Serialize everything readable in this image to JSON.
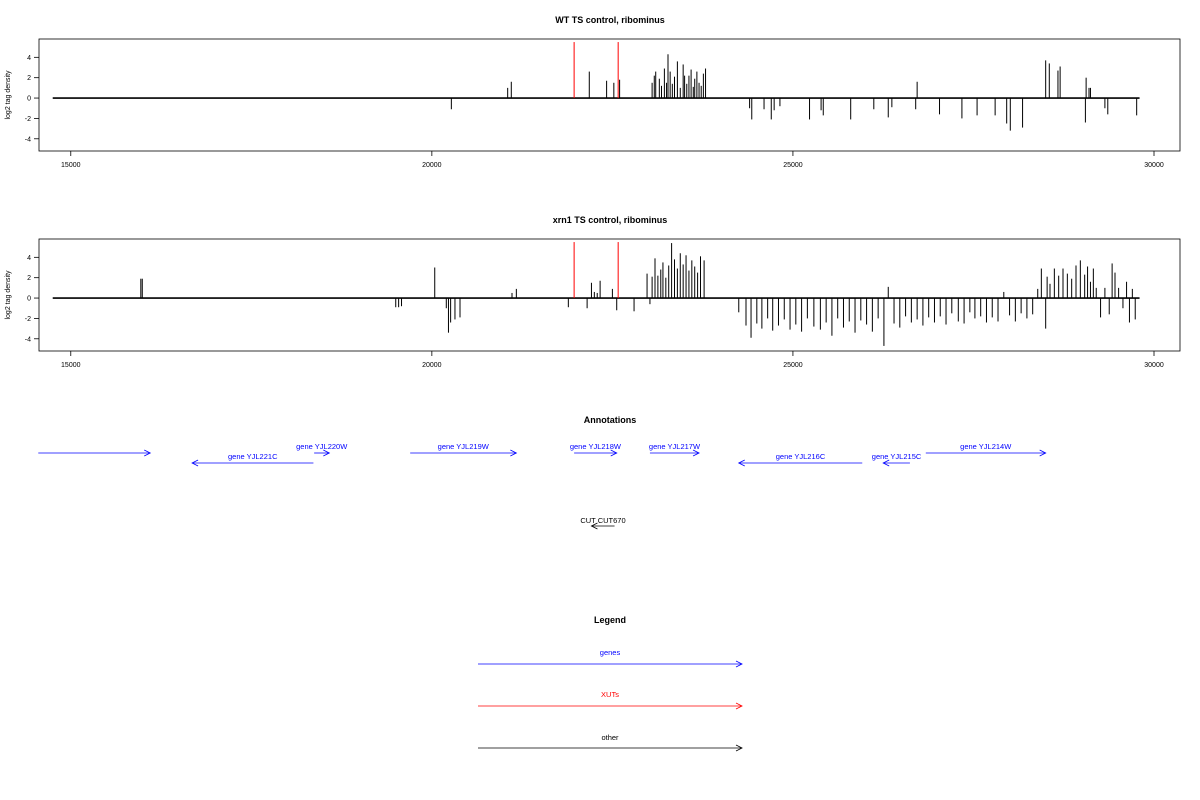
{
  "chart_data": [
    {
      "type": "bar",
      "title": "WT TS control, ribominus",
      "ylabel": "log2 tag density",
      "xlim": [
        14560,
        30360
      ],
      "ylim": [
        -5.2,
        5.8
      ],
      "x_ticks": [
        15000,
        20000,
        25000,
        30000
      ],
      "y_ticks": [
        4,
        2,
        0,
        -2,
        -4
      ],
      "baseline": [
        14750,
        29800
      ],
      "bars": [
        [
          20270,
          -1.1
        ],
        [
          21050,
          1.0
        ],
        [
          21100,
          1.6
        ],
        [
          22180,
          2.6
        ],
        [
          22420,
          1.7
        ],
        [
          22520,
          1.5
        ],
        [
          22600,
          1.8
        ],
        [
          23050,
          1.5
        ],
        [
          23080,
          2.2
        ],
        [
          23100,
          2.6
        ],
        [
          23150,
          1.9
        ],
        [
          23180,
          1.2
        ],
        [
          23220,
          2.9
        ],
        [
          23250,
          1.5
        ],
        [
          23270,
          4.3
        ],
        [
          23300,
          2.6
        ],
        [
          23330,
          1.4
        ],
        [
          23360,
          2.1
        ],
        [
          23400,
          3.6
        ],
        [
          23440,
          1.0
        ],
        [
          23480,
          3.3
        ],
        [
          23500,
          2.2
        ],
        [
          23530,
          1.4
        ],
        [
          23560,
          2.2
        ],
        [
          23590,
          2.8
        ],
        [
          23620,
          1.1
        ],
        [
          23640,
          1.9
        ],
        [
          23670,
          2.6
        ],
        [
          23700,
          1.5
        ],
        [
          23730,
          1.2
        ],
        [
          23760,
          2.4
        ],
        [
          23790,
          2.9
        ],
        [
          24400,
          -1.0
        ],
        [
          24430,
          -2.1
        ],
        [
          24600,
          -1.1
        ],
        [
          24700,
          -2.1
        ],
        [
          24740,
          -1.2
        ],
        [
          24820,
          -0.8
        ],
        [
          25230,
          -2.1
        ],
        [
          25390,
          -1.2
        ],
        [
          25420,
          -1.7
        ],
        [
          25800,
          -2.1
        ],
        [
          26120,
          -1.1
        ],
        [
          26320,
          -1.9
        ],
        [
          26370,
          -0.9
        ],
        [
          26700,
          -1.1
        ],
        [
          26720,
          1.6
        ],
        [
          27030,
          -1.6
        ],
        [
          27340,
          -2.0
        ],
        [
          27550,
          -1.7
        ],
        [
          27800,
          -1.7
        ],
        [
          27960,
          -2.5
        ],
        [
          28010,
          -3.2
        ],
        [
          28180,
          -2.9
        ],
        [
          28500,
          3.7
        ],
        [
          28550,
          3.4
        ],
        [
          28670,
          2.7
        ],
        [
          28700,
          3.1
        ],
        [
          29050,
          -2.4
        ],
        [
          29060,
          2.0
        ],
        [
          29100,
          1.0
        ],
        [
          29120,
          1.0
        ],
        [
          29320,
          -1.0
        ],
        [
          29360,
          -1.6
        ],
        [
          29760,
          -1.7
        ]
      ],
      "highlight_bars": [
        [
          21970,
          5.5
        ],
        [
          22580,
          5.5
        ]
      ]
    },
    {
      "type": "bar",
      "title": "xrn1 TS control, ribominus",
      "ylabel": "log2 tag density",
      "xlim": [
        14560,
        30360
      ],
      "ylim": [
        -5.2,
        5.8
      ],
      "x_ticks": [
        15000,
        20000,
        25000,
        30000
      ],
      "y_ticks": [
        4,
        2,
        0,
        -2,
        -4
      ],
      "baseline": [
        14750,
        29800
      ],
      "bars": [
        [
          15970,
          1.9
        ],
        [
          15990,
          1.9
        ],
        [
          19500,
          -0.9
        ],
        [
          19540,
          -0.9
        ],
        [
          19580,
          -0.8
        ],
        [
          20040,
          3.0
        ],
        [
          20200,
          -1.0
        ],
        [
          20230,
          -3.4
        ],
        [
          20260,
          -2.4
        ],
        [
          20320,
          -2.1
        ],
        [
          20390,
          -1.9
        ],
        [
          21110,
          0.5
        ],
        [
          21170,
          0.9
        ],
        [
          21890,
          -0.9
        ],
        [
          22150,
          -1.0
        ],
        [
          22210,
          1.5
        ],
        [
          22250,
          0.6
        ],
        [
          22290,
          0.5
        ],
        [
          22330,
          1.7
        ],
        [
          22500,
          0.9
        ],
        [
          22560,
          -1.2
        ],
        [
          22800,
          -1.3
        ],
        [
          22980,
          2.4
        ],
        [
          23020,
          -0.6
        ],
        [
          23050,
          2.1
        ],
        [
          23090,
          3.9
        ],
        [
          23130,
          2.2
        ],
        [
          23170,
          2.8
        ],
        [
          23200,
          3.5
        ],
        [
          23240,
          2.0
        ],
        [
          23280,
          3.2
        ],
        [
          23320,
          5.4
        ],
        [
          23360,
          3.8
        ],
        [
          23400,
          2.9
        ],
        [
          23440,
          4.4
        ],
        [
          23480,
          3.3
        ],
        [
          23520,
          4.2
        ],
        [
          23560,
          2.7
        ],
        [
          23600,
          3.7
        ],
        [
          23640,
          3.1
        ],
        [
          23680,
          2.5
        ],
        [
          23720,
          4.1
        ],
        [
          23770,
          3.7
        ],
        [
          24250,
          -1.4
        ],
        [
          24350,
          -2.7
        ],
        [
          24420,
          -3.9
        ],
        [
          24500,
          -2.5
        ],
        [
          24570,
          -3.0
        ],
        [
          24650,
          -2.0
        ],
        [
          24720,
          -3.2
        ],
        [
          24800,
          -2.7
        ],
        [
          24880,
          -2.1
        ],
        [
          24960,
          -3.1
        ],
        [
          25040,
          -2.6
        ],
        [
          25120,
          -3.3
        ],
        [
          25200,
          -2.0
        ],
        [
          25290,
          -2.8
        ],
        [
          25380,
          -3.1
        ],
        [
          25460,
          -2.4
        ],
        [
          25540,
          -3.7
        ],
        [
          25620,
          -2.0
        ],
        [
          25700,
          -2.9
        ],
        [
          25780,
          -2.3
        ],
        [
          25860,
          -3.4
        ],
        [
          25940,
          -2.2
        ],
        [
          26020,
          -2.6
        ],
        [
          26100,
          -3.3
        ],
        [
          26180,
          -2.0
        ],
        [
          26260,
          -4.7
        ],
        [
          26320,
          1.1
        ],
        [
          26400,
          -2.5
        ],
        [
          26480,
          -2.9
        ],
        [
          26560,
          -1.8
        ],
        [
          26640,
          -2.4
        ],
        [
          26720,
          -2.1
        ],
        [
          26800,
          -2.7
        ],
        [
          26880,
          -1.9
        ],
        [
          26960,
          -2.4
        ],
        [
          27040,
          -1.8
        ],
        [
          27120,
          -2.6
        ],
        [
          27200,
          -1.5
        ],
        [
          27290,
          -2.3
        ],
        [
          27370,
          -2.5
        ],
        [
          27450,
          -1.4
        ],
        [
          27520,
          -2.0
        ],
        [
          27600,
          -1.8
        ],
        [
          27680,
          -2.4
        ],
        [
          27760,
          -1.9
        ],
        [
          27840,
          -2.3
        ],
        [
          27920,
          0.6
        ],
        [
          28000,
          -1.7
        ],
        [
          28080,
          -2.3
        ],
        [
          28160,
          -1.5
        ],
        [
          28240,
          -2.0
        ],
        [
          28320,
          -1.6
        ],
        [
          28390,
          0.9
        ],
        [
          28440,
          2.9
        ],
        [
          28500,
          -3.0
        ],
        [
          28520,
          2.1
        ],
        [
          28560,
          1.4
        ],
        [
          28620,
          2.9
        ],
        [
          28680,
          2.2
        ],
        [
          28740,
          2.9
        ],
        [
          28800,
          2.4
        ],
        [
          28860,
          1.9
        ],
        [
          28920,
          3.2
        ],
        [
          28980,
          3.7
        ],
        [
          29040,
          2.3
        ],
        [
          29080,
          3.1
        ],
        [
          29120,
          1.6
        ],
        [
          29160,
          2.9
        ],
        [
          29200,
          1.0
        ],
        [
          29260,
          -1.9
        ],
        [
          29320,
          1.0
        ],
        [
          29380,
          -1.6
        ],
        [
          29420,
          3.4
        ],
        [
          29460,
          2.5
        ],
        [
          29510,
          1.0
        ],
        [
          29570,
          -1.0
        ],
        [
          29620,
          1.6
        ],
        [
          29660,
          -2.4
        ],
        [
          29700,
          0.9
        ],
        [
          29740,
          -2.1
        ]
      ],
      "highlight_bars": [
        [
          21970,
          5.5
        ],
        [
          22580,
          5.5
        ]
      ]
    }
  ],
  "annotations": {
    "title": "Annotations",
    "genes": [
      {
        "label": "",
        "start": 14550,
        "end": 16100,
        "strand": "+",
        "row": "upper"
      },
      {
        "label": "gene YJL220W",
        "start": 18370,
        "end": 18580,
        "strand": "+",
        "row": "upper"
      },
      {
        "label": "gene YJL221C",
        "start": 16680,
        "end": 18360,
        "strand": "-",
        "row": "lower"
      },
      {
        "label": "gene YJL219W",
        "start": 19700,
        "end": 21170,
        "strand": "+",
        "row": "upper"
      },
      {
        "label": "gene YJL218W",
        "start": 21970,
        "end": 22560,
        "strand": "+",
        "row": "upper"
      },
      {
        "label": "gene YJL217W",
        "start": 23020,
        "end": 23700,
        "strand": "+",
        "row": "upper"
      },
      {
        "label": "gene YJL216C",
        "start": 24250,
        "end": 25960,
        "strand": "-",
        "row": "lower"
      },
      {
        "label": "gene YJL215C",
        "start": 26250,
        "end": 26620,
        "strand": "-",
        "row": "lower"
      },
      {
        "label": "gene YJL214W",
        "start": 26840,
        "end": 28500,
        "strand": "+",
        "row": "upper"
      }
    ],
    "other": [
      {
        "label": "CUT CUT670",
        "start": 22210,
        "end": 22530,
        "strand": "-"
      }
    ]
  },
  "legend": {
    "title": "Legend",
    "items": [
      {
        "label": "genes",
        "color": "#0000ff"
      },
      {
        "label": "XUTs",
        "color": "#ff0000"
      },
      {
        "label": "other",
        "color": "#000000"
      }
    ]
  },
  "colors": {
    "bars": "#000000",
    "highlight": "#ff0000",
    "genes": "#0000ff",
    "other": "#000000"
  }
}
